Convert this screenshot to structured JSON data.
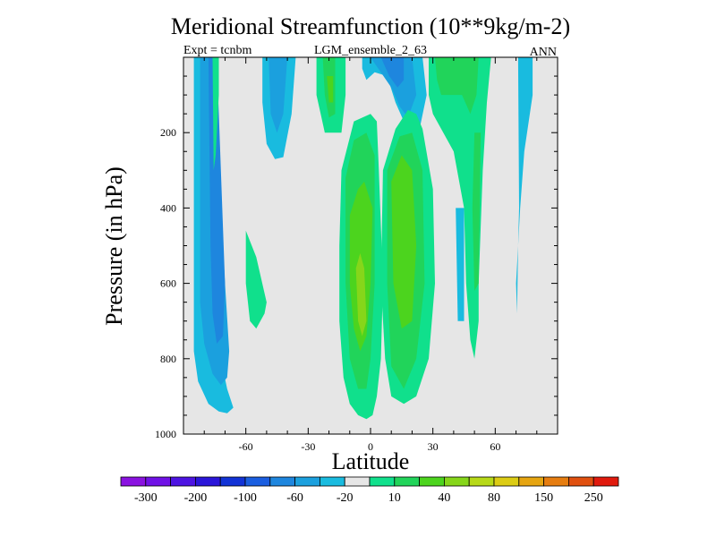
{
  "chart_data": {
    "type": "heatmap",
    "title": "Meridional Streamfunction (10**9kg/m-2)",
    "subtitle_left": "Expt = tcnbm",
    "subtitle_center": "LGM_ensemble_2_63",
    "subtitle_right": "ANN",
    "xlabel": "Latitude",
    "ylabel": "Pressure (in hPa)",
    "xlim": [
      -90,
      90
    ],
    "ylim": [
      1000,
      0
    ],
    "x_ticks": [
      -60,
      -30,
      0,
      30,
      60
    ],
    "y_ticks": [
      200,
      400,
      600,
      800,
      1000
    ],
    "colorbar": {
      "labels": [
        "-300",
        "-200",
        "-100",
        "-60",
        "-20",
        "10",
        "40",
        "80",
        "150",
        "250"
      ],
      "colors": [
        "#8a12e0",
        "#7011e6",
        "#4d13e2",
        "#2a15d9",
        "#1233d6",
        "#1a5ee0",
        "#1e86de",
        "#1ba0de",
        "#19bbdf",
        "#e6e6e6",
        "#10e08c",
        "#21d45a",
        "#4cd41e",
        "#86d61a",
        "#b7d918",
        "#dccc14",
        "#e6a511",
        "#e67d10",
        "#e0500f",
        "#e01a0d"
      ]
    },
    "regions": [
      {
        "level": "-20",
        "color": "#19bbdf",
        "poly": [
          [
            -85,
            0
          ],
          [
            -78,
            0
          ],
          [
            -76,
            300
          ],
          [
            -74,
            600
          ],
          [
            -72,
            800
          ],
          [
            -69,
            880
          ],
          [
            -66,
            930
          ],
          [
            -69,
            945
          ],
          [
            -73,
            940
          ],
          [
            -78,
            920
          ],
          [
            -83,
            860
          ],
          [
            -85,
            780
          ]
        ]
      },
      {
        "level": "-60",
        "color": "#1ba0de",
        "poly": [
          [
            -82,
            0
          ],
          [
            -76,
            0
          ],
          [
            -73,
            300
          ],
          [
            -70,
            600
          ],
          [
            -68,
            780
          ],
          [
            -69,
            850
          ],
          [
            -72,
            870
          ],
          [
            -76,
            840
          ],
          [
            -80,
            760
          ],
          [
            -82,
            650
          ]
        ]
      },
      {
        "level": "-100",
        "color": "#1e86de",
        "poly": [
          [
            -78,
            0
          ],
          [
            -74,
            0
          ],
          [
            -72,
            300
          ],
          [
            -70,
            600
          ],
          [
            -71,
            740
          ],
          [
            -74,
            760
          ],
          [
            -76,
            680
          ],
          [
            -77,
            500
          ]
        ]
      },
      {
        "level": "-20",
        "color": "#19bbdf",
        "poly": [
          [
            -52,
            0
          ],
          [
            -36,
            0
          ],
          [
            -38,
            150
          ],
          [
            -42,
            265
          ],
          [
            -46,
            270
          ],
          [
            -50,
            230
          ],
          [
            -52,
            120
          ]
        ]
      },
      {
        "level": "-60",
        "color": "#1ba0de",
        "poly": [
          [
            -49,
            0
          ],
          [
            -40,
            0
          ],
          [
            -42,
            150
          ],
          [
            -45,
            200
          ],
          [
            -48,
            150
          ]
        ]
      },
      {
        "level": "-20",
        "color": "#19bbdf",
        "poly": [
          [
            -4,
            0
          ],
          [
            10,
            0
          ],
          [
            18,
            0
          ],
          [
            25,
            0
          ],
          [
            27,
            100
          ],
          [
            24,
            180
          ],
          [
            20,
            200
          ],
          [
            16,
            170
          ],
          [
            12,
            120
          ],
          [
            8,
            50
          ],
          [
            2,
            40
          ],
          [
            -2,
            60
          ],
          [
            -4,
            30
          ]
        ]
      },
      {
        "level": "-60",
        "color": "#1ba0de",
        "poly": [
          [
            0,
            0
          ],
          [
            20,
            0
          ],
          [
            22,
            100
          ],
          [
            18,
            160
          ],
          [
            14,
            130
          ],
          [
            10,
            80
          ]
        ]
      },
      {
        "level": "-100",
        "color": "#1e86de",
        "poly": [
          [
            5,
            0
          ],
          [
            16,
            0
          ],
          [
            16,
            60
          ],
          [
            13,
            80
          ],
          [
            9,
            50
          ]
        ]
      },
      {
        "level": "-20",
        "color": "#19bbdf",
        "poly": [
          [
            41,
            400
          ],
          [
            45,
            400
          ],
          [
            45,
            700
          ],
          [
            42,
            700
          ]
        ]
      },
      {
        "level": "-20",
        "color": "#19bbdf",
        "poly": [
          [
            71,
            0
          ],
          [
            78,
            0
          ],
          [
            78,
            100
          ],
          [
            74,
            250
          ],
          [
            72,
            400
          ],
          [
            71,
            500
          ],
          [
            70,
            600
          ],
          [
            70.5,
            680
          ],
          [
            71,
            500
          ],
          [
            71.5,
            400
          ]
        ]
      },
      {
        "level": "10",
        "color": "#10e08c",
        "poly": [
          [
            -76,
            0
          ],
          [
            -73,
            0
          ],
          [
            -73,
            100
          ],
          [
            -74.5,
            260
          ],
          [
            -75.5,
            300
          ]
        ]
      },
      {
        "level": "10",
        "color": "#10e08c",
        "poly": [
          [
            -60,
            460
          ],
          [
            -55,
            530
          ],
          [
            -50,
            650
          ],
          [
            -51,
            680
          ],
          [
            -55,
            720
          ],
          [
            -58,
            700
          ],
          [
            -60,
            600
          ]
        ]
      },
      {
        "level": "10",
        "color": "#10e08c",
        "poly": [
          [
            -26,
            0
          ],
          [
            -12,
            0
          ],
          [
            -12,
            100
          ],
          [
            -13,
            150
          ],
          [
            -14,
            200
          ],
          [
            -22,
            200
          ],
          [
            -24,
            150
          ],
          [
            -26,
            100
          ]
        ]
      },
      {
        "level": "40",
        "color": "#21d45a",
        "poly": [
          [
            -23,
            0
          ],
          [
            -17,
            0
          ],
          [
            -17,
            150
          ],
          [
            -20,
            160
          ],
          [
            -22,
            100
          ]
        ]
      },
      {
        "level": "80",
        "color": "#4cd41e",
        "poly": [
          [
            -21,
            50
          ],
          [
            -18,
            50
          ],
          [
            -18,
            120
          ],
          [
            -20,
            120
          ]
        ]
      },
      {
        "level": "10",
        "color": "#10e08c",
        "poly": [
          [
            -14,
            300
          ],
          [
            -8,
            170
          ],
          [
            0,
            150
          ],
          [
            3,
            170
          ],
          [
            4,
            300
          ],
          [
            6,
            600
          ],
          [
            5,
            800
          ],
          [
            3,
            900
          ],
          [
            1,
            950
          ],
          [
            -2,
            960
          ],
          [
            -6,
            950
          ],
          [
            -10,
            920
          ],
          [
            -13,
            850
          ],
          [
            -15,
            700
          ],
          [
            -15,
            500
          ]
        ]
      },
      {
        "level": "40",
        "color": "#21d45a",
        "poly": [
          [
            -12,
            320
          ],
          [
            -8,
            220
          ],
          [
            -2,
            200
          ],
          [
            2,
            260
          ],
          [
            2,
            600
          ],
          [
            0,
            800
          ],
          [
            -2,
            880
          ],
          [
            -6,
            880
          ],
          [
            -10,
            800
          ],
          [
            -12,
            600
          ]
        ]
      },
      {
        "level": "80",
        "color": "#4cd41e",
        "poly": [
          [
            -10,
            420
          ],
          [
            -6,
            350
          ],
          [
            -3,
            330
          ],
          [
            1,
            400
          ],
          [
            0,
            600
          ],
          [
            -2,
            740
          ],
          [
            -5,
            780
          ],
          [
            -8,
            720
          ],
          [
            -10,
            600
          ]
        ]
      },
      {
        "level": "150",
        "color": "#86d61a",
        "poly": [
          [
            -7,
            560
          ],
          [
            -5,
            520
          ],
          [
            -3,
            560
          ],
          [
            -2,
            700
          ],
          [
            -4,
            740
          ],
          [
            -6,
            700
          ]
        ]
      },
      {
        "level": "10",
        "color": "#10e08c",
        "poly": [
          [
            6,
            300
          ],
          [
            12,
            190
          ],
          [
            18,
            140
          ],
          [
            22,
            150
          ],
          [
            25,
            190
          ],
          [
            30,
            350
          ],
          [
            31,
            600
          ],
          [
            28,
            800
          ],
          [
            22,
            900
          ],
          [
            16,
            920
          ],
          [
            10,
            900
          ],
          [
            7,
            800
          ],
          [
            5,
            600
          ]
        ]
      },
      {
        "level": "40",
        "color": "#21d45a",
        "poly": [
          [
            8,
            300
          ],
          [
            14,
            210
          ],
          [
            20,
            200
          ],
          [
            25,
            300
          ],
          [
            26,
            600
          ],
          [
            22,
            800
          ],
          [
            16,
            880
          ],
          [
            10,
            820
          ],
          [
            8,
            600
          ]
        ]
      },
      {
        "level": "80",
        "color": "#4cd41e",
        "poly": [
          [
            10,
            330
          ],
          [
            15,
            260
          ],
          [
            20,
            300
          ],
          [
            22,
            500
          ],
          [
            20,
            700
          ],
          [
            15,
            720
          ],
          [
            11,
            600
          ]
        ]
      },
      {
        "level": "10",
        "color": "#10e08c",
        "poly": [
          [
            28,
            0
          ],
          [
            58,
            0
          ],
          [
            56,
            120
          ],
          [
            54,
            300
          ],
          [
            52,
            600
          ],
          [
            52,
            700
          ],
          [
            50,
            800
          ],
          [
            48,
            750
          ],
          [
            46,
            600
          ],
          [
            45,
            400
          ],
          [
            40,
            250
          ],
          [
            35,
            200
          ],
          [
            30,
            150
          ],
          [
            28,
            100
          ]
        ]
      },
      {
        "level": "40",
        "color": "#21d45a",
        "poly": [
          [
            31,
            0
          ],
          [
            52,
            0
          ],
          [
            51,
            100
          ],
          [
            48,
            150
          ],
          [
            44,
            100
          ],
          [
            38,
            100
          ],
          [
            34,
            100
          ],
          [
            32,
            60
          ]
        ]
      },
      {
        "level": "40",
        "color": "#21d45a",
        "poly": [
          [
            50,
            200
          ],
          [
            53,
            200
          ],
          [
            52,
            600
          ],
          [
            50,
            620
          ],
          [
            49,
            400
          ]
        ]
      }
    ]
  }
}
